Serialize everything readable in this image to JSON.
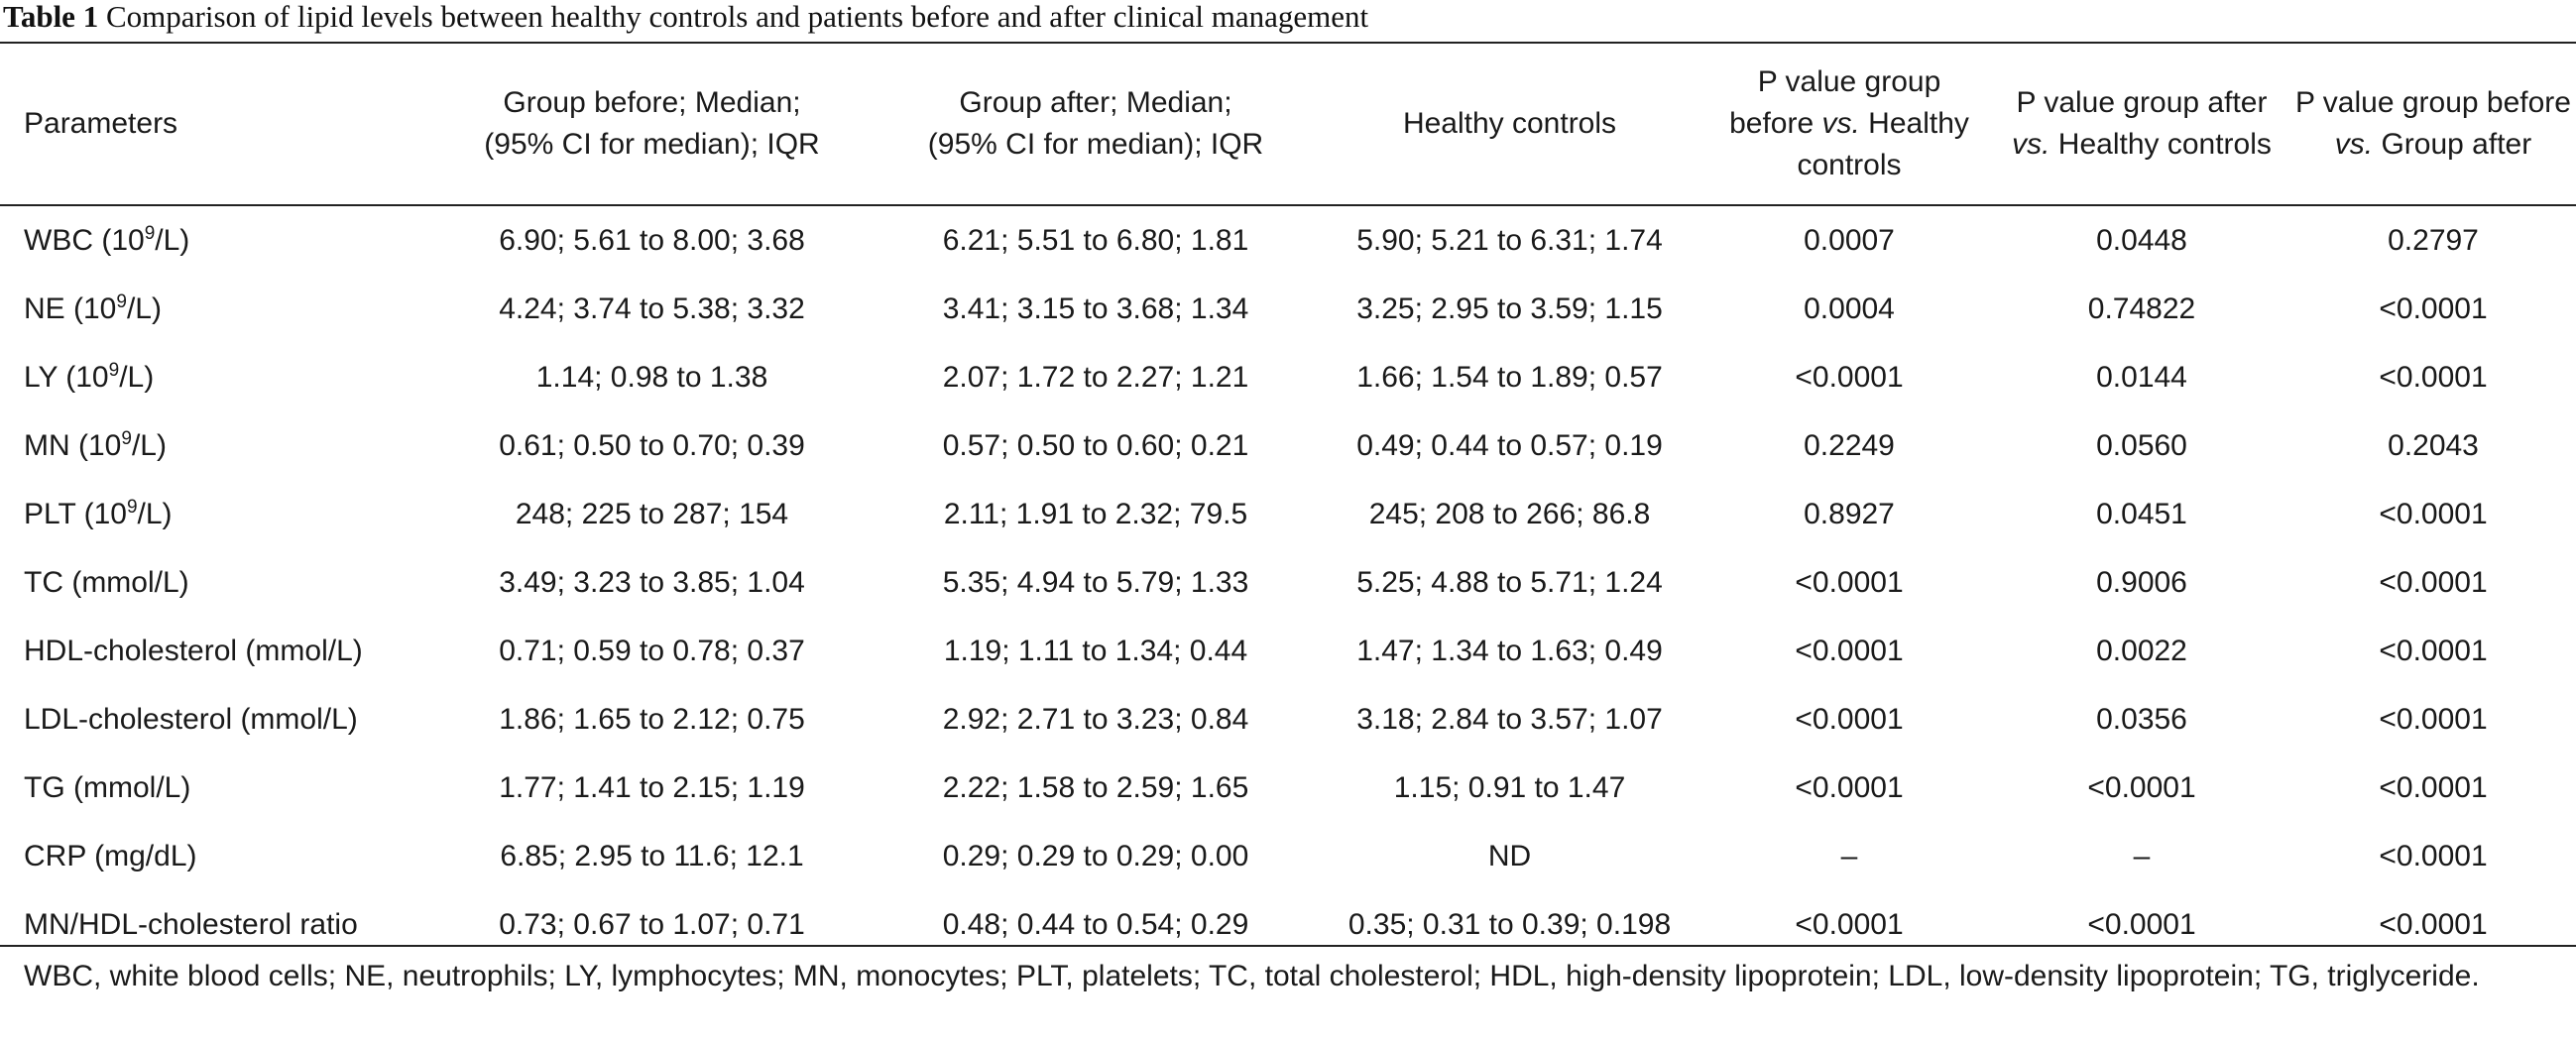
{
  "caption": {
    "label": "Table 1",
    "text": "Comparison of lipid levels between healthy controls and patients before and after clinical management"
  },
  "headers": [
    {
      "line1": "Parameters",
      "line2": "",
      "line3": ""
    },
    {
      "line1": "Group before; Median;",
      "line2": "(95% CI for median); IQR",
      "line3": ""
    },
    {
      "line1": "Group after; Median;",
      "line2": "(95% CI for median); IQR",
      "line3": ""
    },
    {
      "line1": "Healthy controls",
      "line2": "",
      "line3": ""
    },
    {
      "line1": "P value group",
      "line2a": "before ",
      "line2i": "vs.",
      "line2b": " Healthy",
      "line3": "controls"
    },
    {
      "line1": "P value group after",
      "line2i": "vs.",
      "line2b": " Healthy controls"
    },
    {
      "line1": "P value group before",
      "line2i": "vs.",
      "line2b": " Group after"
    }
  ],
  "rows": [
    {
      "param": "WBC (10",
      "sup": "9",
      "unit": "/L)",
      "before": "6.90; 5.61 to 8.00; 3.68",
      "after": "6.21; 5.51 to 6.80; 1.81",
      "controls": "5.90; 5.21 to 6.31; 1.74",
      "p1": "0.0007",
      "p2": "0.0448",
      "p3": "0.2797"
    },
    {
      "param": "NE (10",
      "sup": "9",
      "unit": "/L)",
      "before": "4.24; 3.74 to 5.38; 3.32",
      "after": "3.41; 3.15 to 3.68; 1.34",
      "controls": "3.25; 2.95 to 3.59; 1.15",
      "p1": "0.0004",
      "p2": "0.74822",
      "p3": "<0.0001"
    },
    {
      "param": "LY (10",
      "sup": "9",
      "unit": "/L)",
      "before": "1.14; 0.98 to 1.38",
      "after": "2.07; 1.72 to 2.27; 1.21",
      "controls": "1.66; 1.54 to 1.89; 0.57",
      "p1": "<0.0001",
      "p2": "0.0144",
      "p3": "<0.0001"
    },
    {
      "param": "MN (10",
      "sup": "9",
      "unit": "/L)",
      "before": "0.61; 0.50 to 0.70; 0.39",
      "after": "0.57; 0.50 to 0.60; 0.21",
      "controls": "0.49; 0.44 to 0.57; 0.19",
      "p1": "0.2249",
      "p2": "0.0560",
      "p3": "0.2043"
    },
    {
      "param": "PLT (10",
      "sup": "9",
      "unit": "/L)",
      "before": "248; 225 to 287; 154",
      "after": "2.11; 1.91 to 2.32; 79.5",
      "controls": "245; 208 to 266; 86.8",
      "p1": "0.8927",
      "p2": "0.0451",
      "p3": "<0.0001"
    },
    {
      "param": "TC (mmol/L)",
      "sup": "",
      "unit": "",
      "before": "3.49; 3.23 to 3.85; 1.04",
      "after": "5.35; 4.94 to 5.79; 1.33",
      "controls": "5.25; 4.88 to 5.71; 1.24",
      "p1": "<0.0001",
      "p2": "0.9006",
      "p3": "<0.0001"
    },
    {
      "param": "HDL-cholesterol (mmol/L)",
      "sup": "",
      "unit": "",
      "before": "0.71; 0.59 to 0.78; 0.37",
      "after": "1.19; 1.11 to 1.34; 0.44",
      "controls": "1.47; 1.34 to 1.63; 0.49",
      "p1": "<0.0001",
      "p2": "0.0022",
      "p3": "<0.0001"
    },
    {
      "param": "LDL-cholesterol (mmol/L)",
      "sup": "",
      "unit": "",
      "before": "1.86; 1.65 to 2.12; 0.75",
      "after": "2.92; 2.71 to 3.23; 0.84",
      "controls": "3.18; 2.84 to 3.57; 1.07",
      "p1": "<0.0001",
      "p2": "0.0356",
      "p3": "<0.0001"
    },
    {
      "param": "TG (mmol/L)",
      "sup": "",
      "unit": "",
      "before": "1.77; 1.41 to 2.15; 1.19",
      "after": "2.22; 1.58 to 2.59; 1.65",
      "controls": "1.15; 0.91 to 1.47",
      "p1": "<0.0001",
      "p2": "<0.0001",
      "p3": "<0.0001"
    },
    {
      "param": "CRP (mg/dL)",
      "sup": "",
      "unit": "",
      "before": "6.85; 2.95 to 11.6; 12.1",
      "after": "0.29; 0.29 to 0.29; 0.00",
      "controls": "ND",
      "p1": "–",
      "p2": "–",
      "p3": "<0.0001"
    },
    {
      "param": "MN/HDL-cholesterol ratio",
      "sup": "",
      "unit": "",
      "before": "0.73; 0.67 to 1.07; 0.71",
      "after": "0.48; 0.44 to 0.54; 0.29",
      "controls": "0.35; 0.31 to 0.39; 0.198",
      "p1": "<0.0001",
      "p2": "<0.0001",
      "p3": "<0.0001"
    }
  ],
  "footnote": "WBC, white blood cells; NE, neutrophils; LY, lymphocytes; MN, monocytes; PLT, platelets; TC, total cholesterol; HDL, high-density lipoprotein; LDL, low-density lipoprotein; TG, triglyceride."
}
